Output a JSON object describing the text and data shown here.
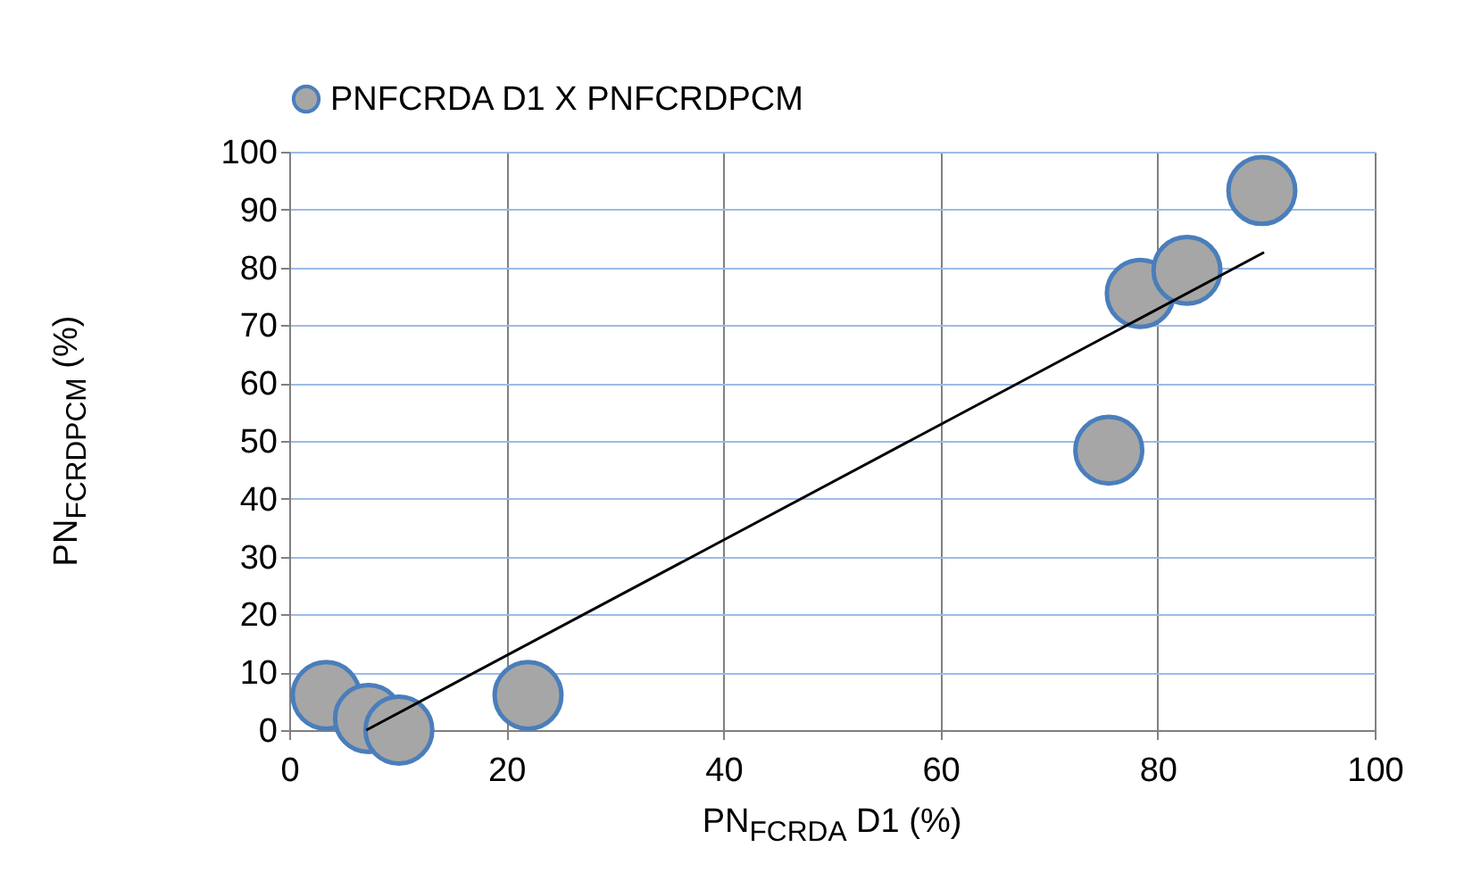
{
  "chart_data": {
    "type": "scatter",
    "xlabel": "PN$_{FCRDA}$ D1 (%)",
    "ylabel": "PN$_{FCRDPCM}$ (%)",
    "xlim": [
      0,
      100
    ],
    "xticks": [
      0,
      20,
      40,
      60,
      80,
      100
    ],
    "ylim": [
      0,
      100
    ],
    "yticks": [
      0,
      10,
      20,
      30,
      40,
      50,
      60,
      70,
      80,
      90,
      100
    ],
    "grid": true,
    "legend": "top",
    "series": [
      {
        "name": "PNFCRDA D1 X PNFCRDPCM",
        "color": "#a6a6a6",
        "marker": "circle",
        "x": [
          3.4,
          7.3,
          10.1,
          22,
          75.5,
          78.4,
          82.7,
          89.6
        ],
        "values": [
          6,
          2,
          0,
          6,
          48.4,
          75.5,
          79.5,
          93.3
        ]
      },
      {
        "type": "line",
        "color": "#000000",
        "x": [
          7.1,
          89.8
        ],
        "values": [
          0,
          82.6
        ]
      }
    ]
  }
}
